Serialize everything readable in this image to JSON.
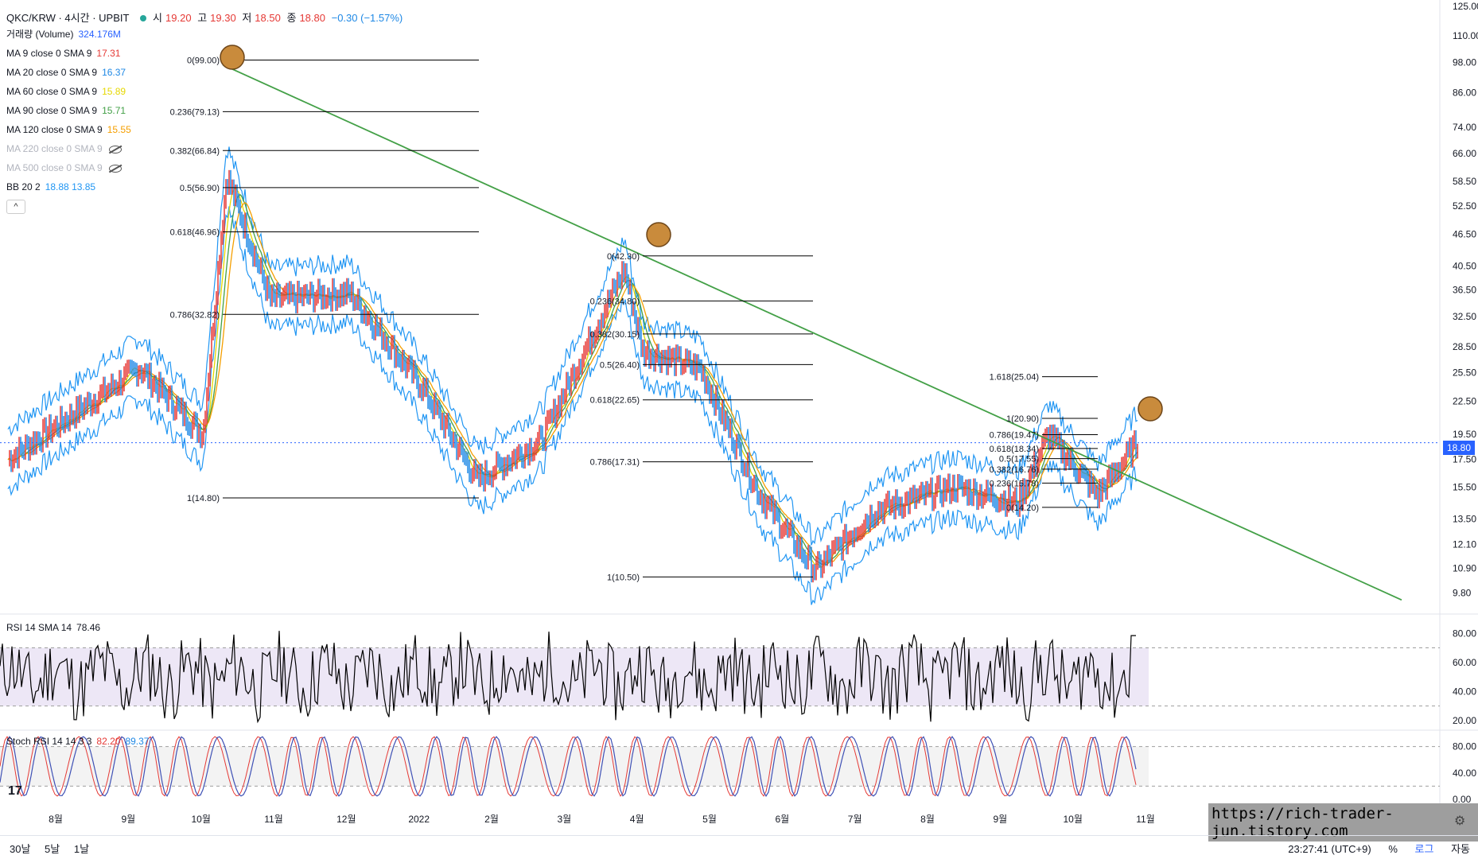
{
  "header": {
    "symbol": "QKC/KRW · 4시간 · UPBIT",
    "open_label": "시",
    "open": "19.20",
    "high_label": "고",
    "high": "19.30",
    "low_label": "저",
    "low": "18.50",
    "close_label": "종",
    "close": "18.80",
    "change": "−0.30 (−1.57%)"
  },
  "legend": [
    {
      "label": "거래량 (Volume)",
      "value": "324.176M",
      "color": "#2962ff",
      "hidden": false
    },
    {
      "label": "MA 9 close 0 SMA 9",
      "value": "17.31",
      "color": "#e53935",
      "hidden": false
    },
    {
      "label": "MA 20 close 0 SMA 9",
      "value": "16.37",
      "color": "#1e88e5",
      "hidden": false
    },
    {
      "label": "MA 60 close 0 SMA 9",
      "value": "15.89",
      "color": "#e6d800",
      "hidden": false
    },
    {
      "label": "MA 90 close 0 SMA 9",
      "value": "15.71",
      "color": "#43a047",
      "hidden": false
    },
    {
      "label": "MA 120 close 0 SMA 9",
      "value": "15.55",
      "color": "#f59f00",
      "hidden": false
    },
    {
      "label": "MA 220 close 0 SMA 9",
      "value": "",
      "color": "#bdbdbd",
      "hidden": true
    },
    {
      "label": "MA 500 close 0 SMA 9",
      "value": "",
      "color": "#bdbdbd",
      "hidden": true
    },
    {
      "label": "BB 20 2",
      "value": "18.88  13.85",
      "color": "#2196f3",
      "hidden": false
    }
  ],
  "collapse_glyph": "^",
  "rsi_legend": {
    "label": "RSI 14 SMA 14",
    "value": "78.46"
  },
  "stoch_legend": {
    "label": "Stoch RSI 14 14 3 3",
    "k": "82.20",
    "d": "89.37"
  },
  "last_price_tag": "18.80",
  "watermark_url": "https://rich-trader-jun.tistory.com",
  "tv_logo": "17",
  "footer": {
    "ranges": [
      "30날",
      "5날",
      "1날"
    ],
    "time": "23:27:41 (UTC+9)",
    "percent": "%",
    "log": "로그",
    "auto": "자동"
  },
  "colors": {
    "up": "#e53935",
    "down": "#1e88e5",
    "trendline": "#43a047",
    "fib": "#000000",
    "rsi_band": "#ede7f6"
  },
  "chart_data": [
    {
      "type": "line",
      "title": "QKC/KRW 4시간 UPBIT",
      "x_tick_labels": [
        "8월",
        "9월",
        "10월",
        "11월",
        "12월",
        "2022",
        "2월",
        "3월",
        "4월",
        "5월",
        "6월",
        "7월",
        "8월",
        "9월",
        "10월",
        "11월"
      ],
      "y_tick_labels": [
        "125.00",
        "110.00",
        "98.00",
        "86.00",
        "74.00",
        "66.00",
        "58.50",
        "52.50",
        "46.50",
        "40.50",
        "36.50",
        "32.50",
        "28.50",
        "25.50",
        "22.50",
        "19.50",
        "17.50",
        "15.50",
        "13.50",
        "12.10",
        "10.90",
        "9.80"
      ],
      "y_scale": "log",
      "ylim": [
        9.0,
        125.0
      ],
      "last_price": 18.8,
      "series": [
        {
          "name": "QKC/KRW",
          "x": [
            "8월",
            "9월",
            "10월",
            "10월",
            "11월",
            "12월",
            "2022",
            "2월",
            "3월",
            "4월",
            "4월",
            "5월",
            "6월",
            "6월",
            "7월",
            "8월",
            "9월",
            "10월",
            "10월",
            "11월"
          ],
          "values": [
            17.5,
            26.0,
            19.5,
            60.0,
            35.0,
            36.0,
            24.0,
            16.0,
            19.0,
            40.0,
            28.0,
            26.0,
            15.0,
            10.8,
            14.0,
            15.5,
            14.5,
            19.5,
            15.0,
            18.8
          ]
        }
      ],
      "fibonacci": [
        {
          "levels": [
            {
              "label": "0(99.00)",
              "price": 99.0
            },
            {
              "label": "0.236(79.13)",
              "price": 79.13
            },
            {
              "label": "0.382(66.84)",
              "price": 66.84
            },
            {
              "label": "0.5(56.90)",
              "price": 56.9
            },
            {
              "label": "0.618(46.96)",
              "price": 46.96
            },
            {
              "label": "0.786(32.82)",
              "price": 32.82
            },
            {
              "label": "1(14.80)",
              "price": 14.8
            }
          ]
        },
        {
          "levels": [
            {
              "label": "0(42.30)",
              "price": 42.3
            },
            {
              "label": "0.236(34.80)",
              "price": 34.8
            },
            {
              "label": "0.382(30.15)",
              "price": 30.15
            },
            {
              "label": "0.5(26.40)",
              "price": 26.4
            },
            {
              "label": "0.618(22.65)",
              "price": 22.65
            },
            {
              "label": "0.786(17.31)",
              "price": 17.31
            },
            {
              "label": "1(10.50)",
              "price": 10.5
            }
          ]
        },
        {
          "levels": [
            {
              "label": "1.618(25.04)",
              "price": 25.04
            },
            {
              "label": "1(20.90)",
              "price": 20.9
            },
            {
              "label": "0.786(19.47)",
              "price": 19.47
            },
            {
              "label": "0.618(18.34)",
              "price": 18.34
            },
            {
              "label": "0.5(17.55)",
              "price": 17.55
            },
            {
              "label": "0.382(16.76)",
              "price": 16.76
            },
            {
              "label": "0.236(15.78)",
              "price": 15.78
            },
            {
              "label": "0(14.20)",
              "price": 14.2
            }
          ]
        }
      ],
      "trendline": {
        "from": {
          "x": "10월",
          "y": 97.0
        },
        "to": {
          "x": "11월+",
          "y": 9.5
        }
      }
    },
    {
      "type": "line",
      "title": "RSI 14 SMA 14",
      "y_tick_labels": [
        "80.00",
        "60.00",
        "40.00",
        "20.00"
      ],
      "ylim": [
        15,
        90
      ],
      "bands": [
        70,
        30
      ],
      "last_value": 78.46
    },
    {
      "type": "line",
      "title": "Stoch RSI 14 14 3 3",
      "y_tick_labels": [
        "80.00",
        "40.00",
        "0.00"
      ],
      "ylim": [
        0,
        100
      ],
      "bands": [
        80,
        20
      ],
      "series": [
        {
          "name": "K",
          "last": 82.2
        },
        {
          "name": "D",
          "last": 89.37
        }
      ]
    }
  ]
}
